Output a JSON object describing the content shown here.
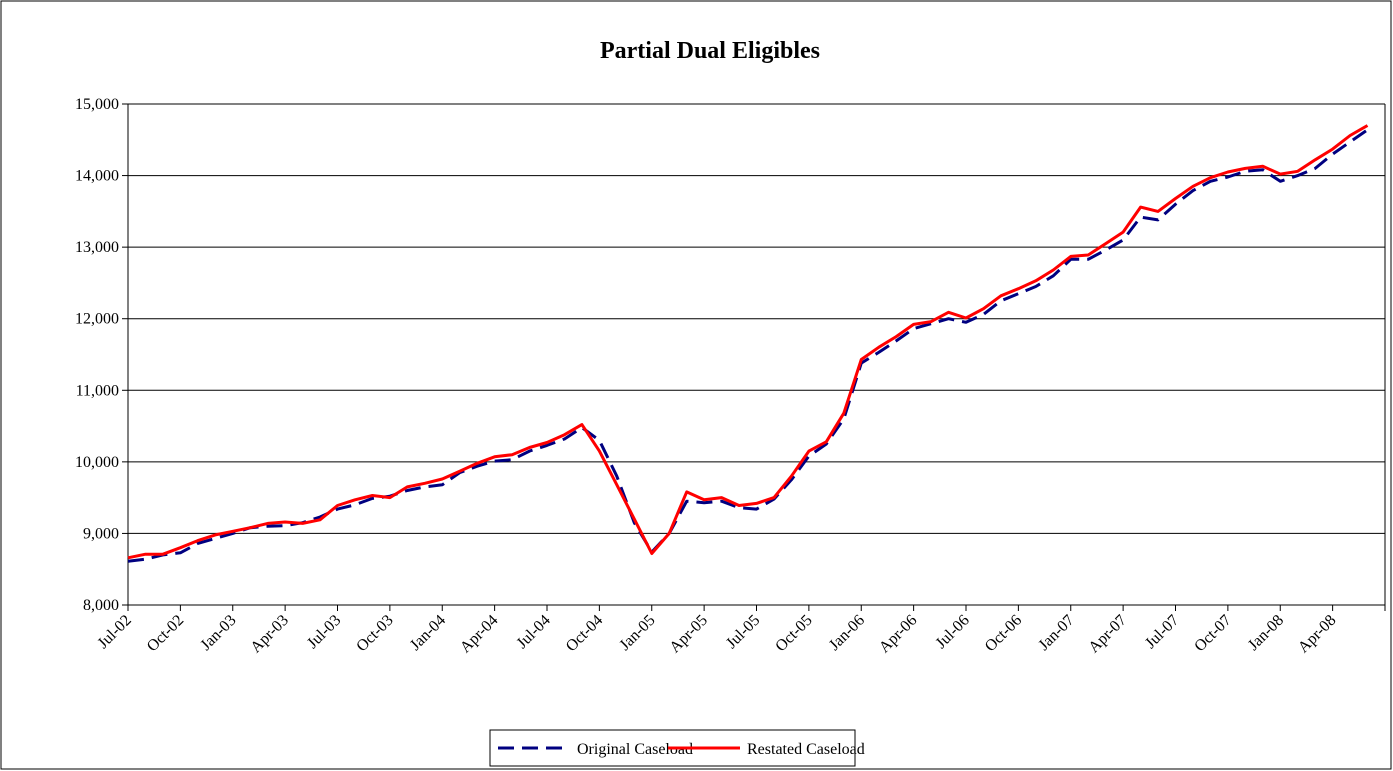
{
  "chart_data": {
    "type": "line",
    "title": "Partial Dual Eligibles",
    "categories": [
      "Jul-02",
      null,
      null,
      "Oct-02",
      null,
      null,
      "Jan-03",
      null,
      null,
      "Apr-03",
      null,
      null,
      "Jul-03",
      null,
      null,
      "Oct-03",
      null,
      null,
      "Jan-04",
      null,
      null,
      "Apr-04",
      null,
      null,
      "Jul-04",
      null,
      null,
      "Oct-04",
      null,
      null,
      "Jan-05",
      null,
      null,
      "Apr-05",
      null,
      null,
      "Jul-05",
      null,
      null,
      "Oct-05",
      null,
      null,
      "Jan-06",
      null,
      null,
      "Apr-06",
      null,
      null,
      "Jul-06",
      null,
      null,
      "Oct-06",
      null,
      null,
      "Jan-07",
      null,
      null,
      "Apr-07",
      null,
      null,
      "Jul-07",
      null,
      null,
      "Oct-07",
      null,
      null,
      "Jan-08",
      null,
      null,
      "Apr-08",
      null,
      null
    ],
    "series": [
      {
        "name": "Original Caseload",
        "color": "#000080",
        "dash": true,
        "values": [
          8610,
          8640,
          8700,
          8730,
          8860,
          8930,
          9000,
          9080,
          9100,
          9110,
          9150,
          9230,
          9340,
          9400,
          9490,
          9520,
          9600,
          9650,
          9680,
          9850,
          9940,
          10010,
          10030,
          10150,
          10230,
          10320,
          10480,
          10300,
          9800,
          9150,
          8740,
          9000,
          9450,
          9430,
          9450,
          9360,
          9340,
          9480,
          9750,
          10080,
          10250,
          10600,
          11380,
          11530,
          11690,
          11860,
          11930,
          12000,
          11950,
          12060,
          12250,
          12350,
          12450,
          12600,
          12830,
          12830,
          12960,
          13100,
          13420,
          13380,
          13600,
          13790,
          13920,
          13980,
          14060,
          14080,
          13920,
          14000,
          14100,
          14300,
          14470,
          14640
        ]
      },
      {
        "name": "Restated Caseload",
        "color": "#ff0000",
        "dash": false,
        "values": [
          8660,
          8710,
          8710,
          8800,
          8900,
          8980,
          9030,
          9080,
          9140,
          9160,
          9140,
          9190,
          9390,
          9470,
          9530,
          9500,
          9650,
          9700,
          9760,
          9870,
          9980,
          10070,
          10100,
          10200,
          10270,
          10380,
          10520,
          10150,
          9680,
          9200,
          8720,
          9000,
          9580,
          9470,
          9500,
          9390,
          9420,
          9500,
          9800,
          10150,
          10280,
          10680,
          11430,
          11600,
          11750,
          11920,
          11960,
          12090,
          12010,
          12140,
          12320,
          12420,
          12530,
          12680,
          12870,
          12890,
          13050,
          13210,
          13560,
          13500,
          13680,
          13850,
          13970,
          14050,
          14100,
          14130,
          14020,
          14060,
          14220,
          14370,
          14560,
          14700
        ]
      }
    ],
    "ylim": [
      8000,
      15000
    ],
    "yticks": [
      {
        "value": 8000,
        "label": "8,000"
      },
      {
        "value": 9000,
        "label": "9,000"
      },
      {
        "value": 10000,
        "label": "10,000"
      },
      {
        "value": 11000,
        "label": "11,000"
      },
      {
        "value": 12000,
        "label": "12,000"
      },
      {
        "value": 13000,
        "label": "13,000"
      },
      {
        "value": 14000,
        "label": "14,000"
      },
      {
        "value": 15000,
        "label": "15,000"
      }
    ],
    "grid": true,
    "legend": "bottom"
  }
}
